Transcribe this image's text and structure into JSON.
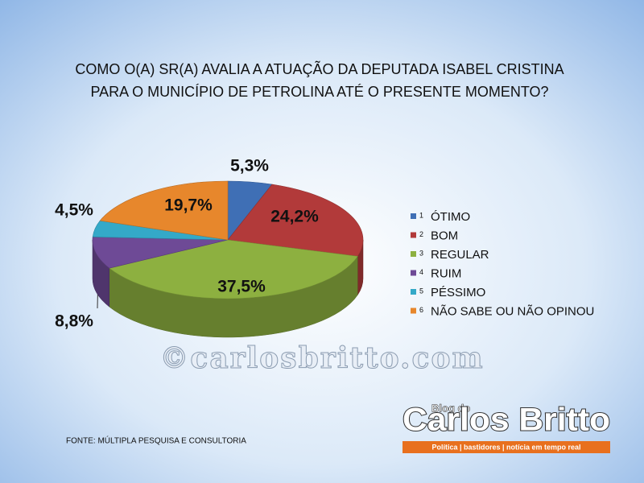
{
  "chart_data": {
    "type": "pie3d",
    "title": [
      "COMO O(A) SR(A) AVALIA A ATUAÇÃO DA DEPUTADA ISABEL CRISTINA",
      "PARA O MUNICÍPIO DE PETROLINA ATÉ O PRESENTE MOMENTO?"
    ],
    "categories": [
      "ÓTIMO",
      "BOM",
      "REGULAR",
      "RUIM",
      "PÉSSIMO",
      "NÃO SABE OU NÃO OPINOU"
    ],
    "legend_index_labels": [
      "1",
      "2",
      "3",
      "4",
      "5",
      "6"
    ],
    "values": [
      5.3,
      24.2,
      37.5,
      8.8,
      4.5,
      19.7
    ],
    "value_labels": [
      "5,3%",
      "24,2%",
      "37,5%",
      "8,8%",
      "4,5%",
      "19,7%"
    ],
    "colors": [
      "#3f6fb5",
      "#b23a3a",
      "#8db040",
      "#6e4a96",
      "#34a9c8",
      "#e7872c"
    ],
    "legend": "right",
    "source": "FONTE: MÚLTIPLA PESQUISA E CONSULTORIA"
  },
  "watermark": "©carlosbritto.com",
  "logo": {
    "small": "Blog do",
    "name": "Carlos Britto",
    "tagline": "Política | bastidores | notícia em tempo real"
  }
}
